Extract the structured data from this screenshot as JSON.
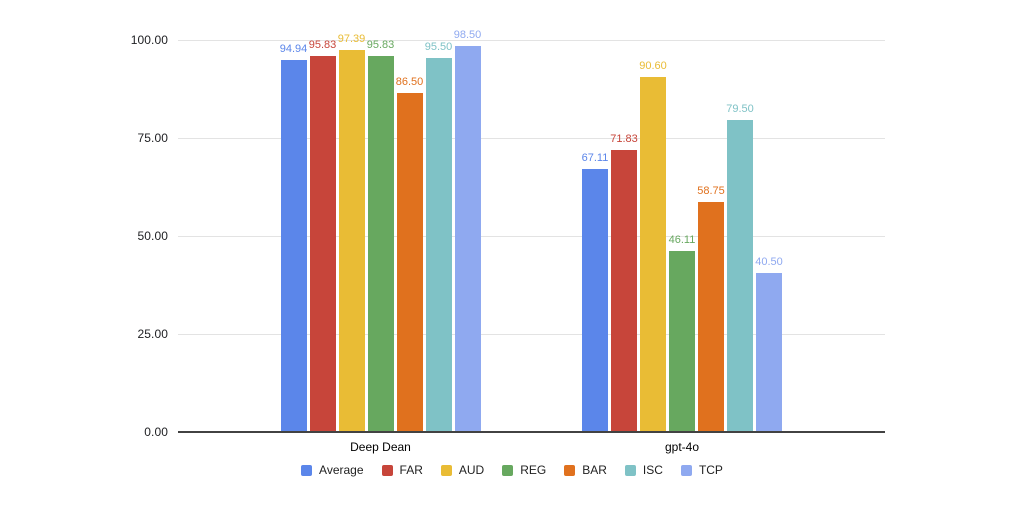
{
  "chart_data": {
    "type": "bar",
    "title": "",
    "xlabel": "",
    "ylabel": "",
    "categories": [
      "Deep Dean",
      "gpt-4o"
    ],
    "series": [
      {
        "name": "Average",
        "color": "#5B86EA",
        "values": [
          94.94,
          67.11
        ]
      },
      {
        "name": "FAR",
        "color": "#C7453A",
        "values": [
          95.83,
          71.83
        ]
      },
      {
        "name": "AUD",
        "color": "#E9BC35",
        "values": [
          97.39,
          90.6
        ]
      },
      {
        "name": "REG",
        "color": "#67A85F",
        "values": [
          95.83,
          46.11
        ]
      },
      {
        "name": "BAR",
        "color": "#E0711E",
        "values": [
          86.5,
          58.75
        ]
      },
      {
        "name": "ISC",
        "color": "#7FC2C6",
        "values": [
          95.5,
          79.5
        ]
      },
      {
        "name": "TCP",
        "color": "#8FA9F0",
        "values": [
          98.5,
          40.5
        ]
      }
    ],
    "value_label_decimals": 2,
    "y_ticks": [
      100,
      75,
      50,
      25,
      0
    ],
    "y_tick_labels": [
      "100.00",
      "75.00",
      "50.00",
      "25.00",
      "0.00"
    ],
    "ylim": [
      0,
      100
    ],
    "grid": true,
    "legend_position": "bottom",
    "colors": {
      "gridline": "#e3e3e3",
      "axis_line": "#424242",
      "axis_text": "#202124",
      "legend_text": "#1f1f1f",
      "background": "#ffffff"
    }
  }
}
